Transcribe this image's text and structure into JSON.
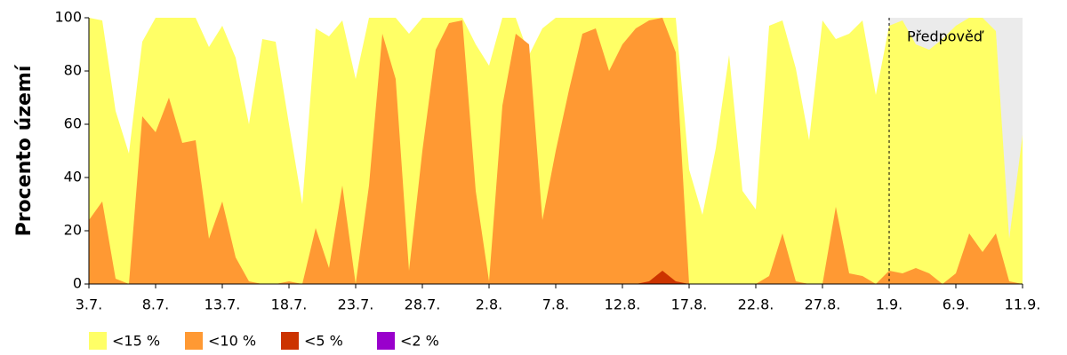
{
  "chart_data": {
    "type": "area",
    "y_label": "Procento území",
    "categories": [
      "3.7.",
      null,
      null,
      null,
      null,
      "8.7.",
      null,
      null,
      null,
      null,
      "13.7.",
      null,
      null,
      null,
      null,
      "18.7.",
      null,
      null,
      null,
      null,
      "23.7.",
      null,
      null,
      null,
      null,
      "28.7.",
      null,
      null,
      null,
      null,
      "2.8.",
      null,
      null,
      null,
      null,
      "7.8.",
      null,
      null,
      null,
      null,
      "12.8.",
      null,
      null,
      null,
      null,
      "17.8.",
      null,
      null,
      null,
      null,
      "22.8.",
      null,
      null,
      null,
      null,
      "27.8.",
      null,
      null,
      null,
      null,
      "1.9.",
      null,
      null,
      null,
      null,
      "6.9.",
      null,
      null,
      null,
      null,
      "11.9."
    ],
    "series": [
      {
        "name": "<15 %",
        "color": "#ffff66",
        "values": [
          100,
          99,
          65,
          49,
          91,
          100,
          100,
          100,
          100,
          89,
          97,
          85,
          60,
          92,
          91,
          60,
          30,
          96,
          93,
          99,
          77,
          100,
          100,
          100,
          94,
          100,
          100,
          100,
          100,
          90,
          82,
          100,
          100,
          86,
          96,
          100,
          100,
          100,
          100,
          100,
          100,
          100,
          100,
          100,
          100,
          43,
          26,
          51,
          86,
          35,
          28,
          97,
          99,
          81,
          54,
          99,
          92,
          94,
          99,
          71,
          97,
          99,
          90,
          88,
          92,
          97,
          100,
          100,
          95,
          17,
          56
        ]
      },
      {
        "name": "<10 %",
        "color": "#ff9933",
        "values": [
          24,
          31,
          2,
          0,
          63,
          57,
          70,
          53,
          54,
          17,
          31,
          10,
          1,
          0,
          0,
          1,
          0,
          21,
          6,
          37,
          0,
          37,
          94,
          77,
          5,
          50,
          88,
          98,
          99,
          35,
          1,
          67,
          94,
          90,
          24,
          50,
          73,
          94,
          96,
          80,
          90,
          96,
          99,
          100,
          87,
          0,
          0,
          0,
          0,
          0,
          0,
          3,
          19,
          1,
          0,
          0,
          29,
          4,
          3,
          0,
          5,
          4,
          6,
          4,
          0,
          4,
          19,
          12,
          19,
          1,
          0
        ]
      },
      {
        "name": "<5 %",
        "color": "#cc3300",
        "values": [
          0,
          0,
          0,
          0,
          0,
          0,
          0,
          0,
          0,
          0,
          0,
          0,
          0,
          0,
          0,
          0,
          0,
          0,
          0,
          0,
          0,
          0,
          0,
          0,
          0,
          0,
          0,
          0,
          0,
          0,
          0,
          0,
          0,
          0,
          0,
          0,
          0,
          0,
          0,
          0,
          0,
          0,
          1,
          5,
          1,
          0,
          0,
          0,
          0,
          0,
          0,
          0,
          0,
          0,
          0,
          0,
          0,
          0,
          0,
          0,
          0,
          0,
          0,
          0,
          0,
          0,
          0,
          0,
          0,
          0,
          0
        ]
      },
      {
        "name": "<2 %",
        "color": "#9900cc",
        "values": [
          0,
          0,
          0,
          0,
          0,
          0,
          0,
          0,
          0,
          0,
          0,
          0,
          0,
          0,
          0,
          0,
          0,
          0,
          0,
          0,
          0,
          0,
          0,
          0,
          0,
          0,
          0,
          0,
          0,
          0,
          0,
          0,
          0,
          0,
          0,
          0,
          0,
          0,
          0,
          0,
          0,
          0,
          0,
          0,
          0,
          0,
          0,
          0,
          0,
          0,
          0,
          0,
          0,
          0,
          0,
          0,
          0,
          0,
          0,
          0,
          0,
          0,
          0,
          0,
          0,
          0,
          0,
          0,
          0,
          0,
          0
        ]
      }
    ],
    "ylim": [
      0,
      100
    ],
    "yticks": [
      0,
      20,
      40,
      60,
      80,
      100
    ],
    "forecast": {
      "label": "Předpověď",
      "start": "1.9.",
      "color": "#ebebeb"
    },
    "legend": "bottom-left"
  }
}
